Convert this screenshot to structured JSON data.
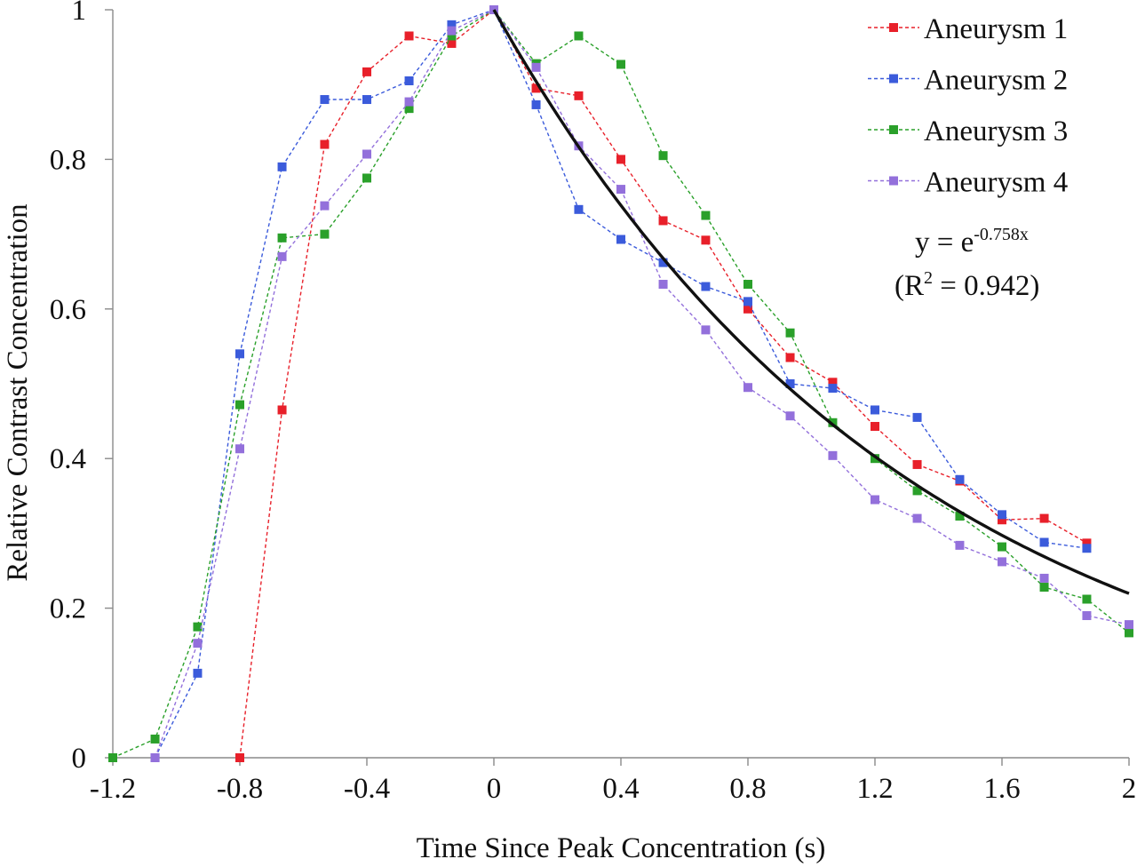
{
  "chart_data": {
    "type": "line",
    "xlabel": "Time Since Peak Concentration (s)",
    "ylabel": "Relative Contrast Concentration",
    "xlim": [
      -1.2,
      2
    ],
    "ylim": [
      0,
      1
    ],
    "x_ticks": [
      -1.2,
      -0.8,
      -0.4,
      0,
      0.4,
      0.8,
      1.2,
      1.6,
      2
    ],
    "x_tick_labels": [
      "-1.2",
      "-0.8",
      "-0.4",
      "0",
      "0.4",
      "0.8",
      "1.2",
      "1.6",
      "2"
    ],
    "y_ticks": [
      0,
      0.2,
      0.4,
      0.6,
      0.8,
      1
    ],
    "y_tick_labels": [
      "0",
      "0.2",
      "0.4",
      "0.6",
      "0.8",
      "1"
    ],
    "grid": false,
    "legend": "top-right",
    "series": [
      {
        "name": "Aneurysm 1",
        "color": "#e8202a",
        "marker": "square",
        "line_style": "dashed",
        "points": [
          [
            -0.8,
            0.0
          ],
          [
            -0.667,
            0.465
          ],
          [
            -0.533,
            0.82
          ],
          [
            -0.4,
            0.917
          ],
          [
            -0.267,
            0.965
          ],
          [
            -0.133,
            0.955
          ],
          [
            0,
            1.0
          ],
          [
            0.133,
            0.895
          ],
          [
            0.267,
            0.885
          ],
          [
            0.4,
            0.8
          ],
          [
            0.533,
            0.718
          ],
          [
            0.667,
            0.692
          ],
          [
            0.8,
            0.6
          ],
          [
            0.933,
            0.535
          ],
          [
            1.067,
            0.502
          ],
          [
            1.2,
            0.443
          ],
          [
            1.333,
            0.392
          ],
          [
            1.467,
            0.37
          ],
          [
            1.6,
            0.318
          ],
          [
            1.733,
            0.32
          ],
          [
            1.867,
            0.287
          ]
        ]
      },
      {
        "name": "Aneurysm 2",
        "color": "#3b5bdb",
        "marker": "square",
        "line_style": "dashed",
        "points": [
          [
            -1.067,
            0.0
          ],
          [
            -0.933,
            0.113
          ],
          [
            -0.8,
            0.54
          ],
          [
            -0.667,
            0.79
          ],
          [
            -0.533,
            0.88
          ],
          [
            -0.4,
            0.88
          ],
          [
            -0.267,
            0.905
          ],
          [
            -0.133,
            0.98
          ],
          [
            0,
            1.0
          ],
          [
            0.133,
            0.873
          ],
          [
            0.267,
            0.733
          ],
          [
            0.4,
            0.693
          ],
          [
            0.533,
            0.662
          ],
          [
            0.667,
            0.63
          ],
          [
            0.8,
            0.61
          ],
          [
            0.933,
            0.5
          ],
          [
            1.067,
            0.494
          ],
          [
            1.2,
            0.465
          ],
          [
            1.333,
            0.455
          ],
          [
            1.467,
            0.372
          ],
          [
            1.6,
            0.325
          ],
          [
            1.733,
            0.288
          ],
          [
            1.867,
            0.28
          ]
        ]
      },
      {
        "name": "Aneurysm 3",
        "color": "#2aa02a",
        "marker": "square",
        "line_style": "dashed",
        "points": [
          [
            -1.2,
            0.0
          ],
          [
            -1.067,
            0.025
          ],
          [
            -0.933,
            0.175
          ],
          [
            -0.8,
            0.472
          ],
          [
            -0.667,
            0.695
          ],
          [
            -0.533,
            0.7
          ],
          [
            -0.4,
            0.775
          ],
          [
            -0.267,
            0.868
          ],
          [
            -0.133,
            0.965
          ],
          [
            0,
            1.0
          ],
          [
            0.133,
            0.928
          ],
          [
            0.267,
            0.965
          ],
          [
            0.4,
            0.927
          ],
          [
            0.533,
            0.805
          ],
          [
            0.667,
            0.725
          ],
          [
            0.8,
            0.633
          ],
          [
            0.933,
            0.568
          ],
          [
            1.067,
            0.448
          ],
          [
            1.2,
            0.4
          ],
          [
            1.333,
            0.357
          ],
          [
            1.467,
            0.323
          ],
          [
            1.6,
            0.282
          ],
          [
            1.733,
            0.228
          ],
          [
            1.867,
            0.212
          ],
          [
            2.0,
            0.167
          ]
        ]
      },
      {
        "name": "Aneurysm 4",
        "color": "#9370db",
        "marker": "square",
        "line_style": "dashed",
        "points": [
          [
            -1.067,
            0.0
          ],
          [
            -0.933,
            0.153
          ],
          [
            -0.8,
            0.413
          ],
          [
            -0.667,
            0.67
          ],
          [
            -0.533,
            0.738
          ],
          [
            -0.4,
            0.807
          ],
          [
            -0.267,
            0.877
          ],
          [
            -0.133,
            0.972
          ],
          [
            0,
            1.0
          ],
          [
            0.133,
            0.923
          ],
          [
            0.267,
            0.818
          ],
          [
            0.4,
            0.76
          ],
          [
            0.533,
            0.633
          ],
          [
            0.667,
            0.572
          ],
          [
            0.8,
            0.495
          ],
          [
            0.933,
            0.457
          ],
          [
            1.067,
            0.404
          ],
          [
            1.2,
            0.345
          ],
          [
            1.333,
            0.32
          ],
          [
            1.467,
            0.284
          ],
          [
            1.6,
            0.262
          ],
          [
            1.733,
            0.24
          ],
          [
            1.867,
            0.19
          ],
          [
            2.0,
            0.178
          ]
        ]
      }
    ],
    "fit": {
      "equation": "y = e-0.758x",
      "equation_base": "y = e",
      "equation_exponent": "-0.758x",
      "r_squared_label": "(R2 = 0.942)",
      "r_squared_prefix": "(R",
      "r_squared_sup": "2",
      "r_squared_suffix": " = 0.942)",
      "coefficient": -0.758,
      "x_range": [
        0,
        2
      ],
      "color": "#111111"
    }
  }
}
